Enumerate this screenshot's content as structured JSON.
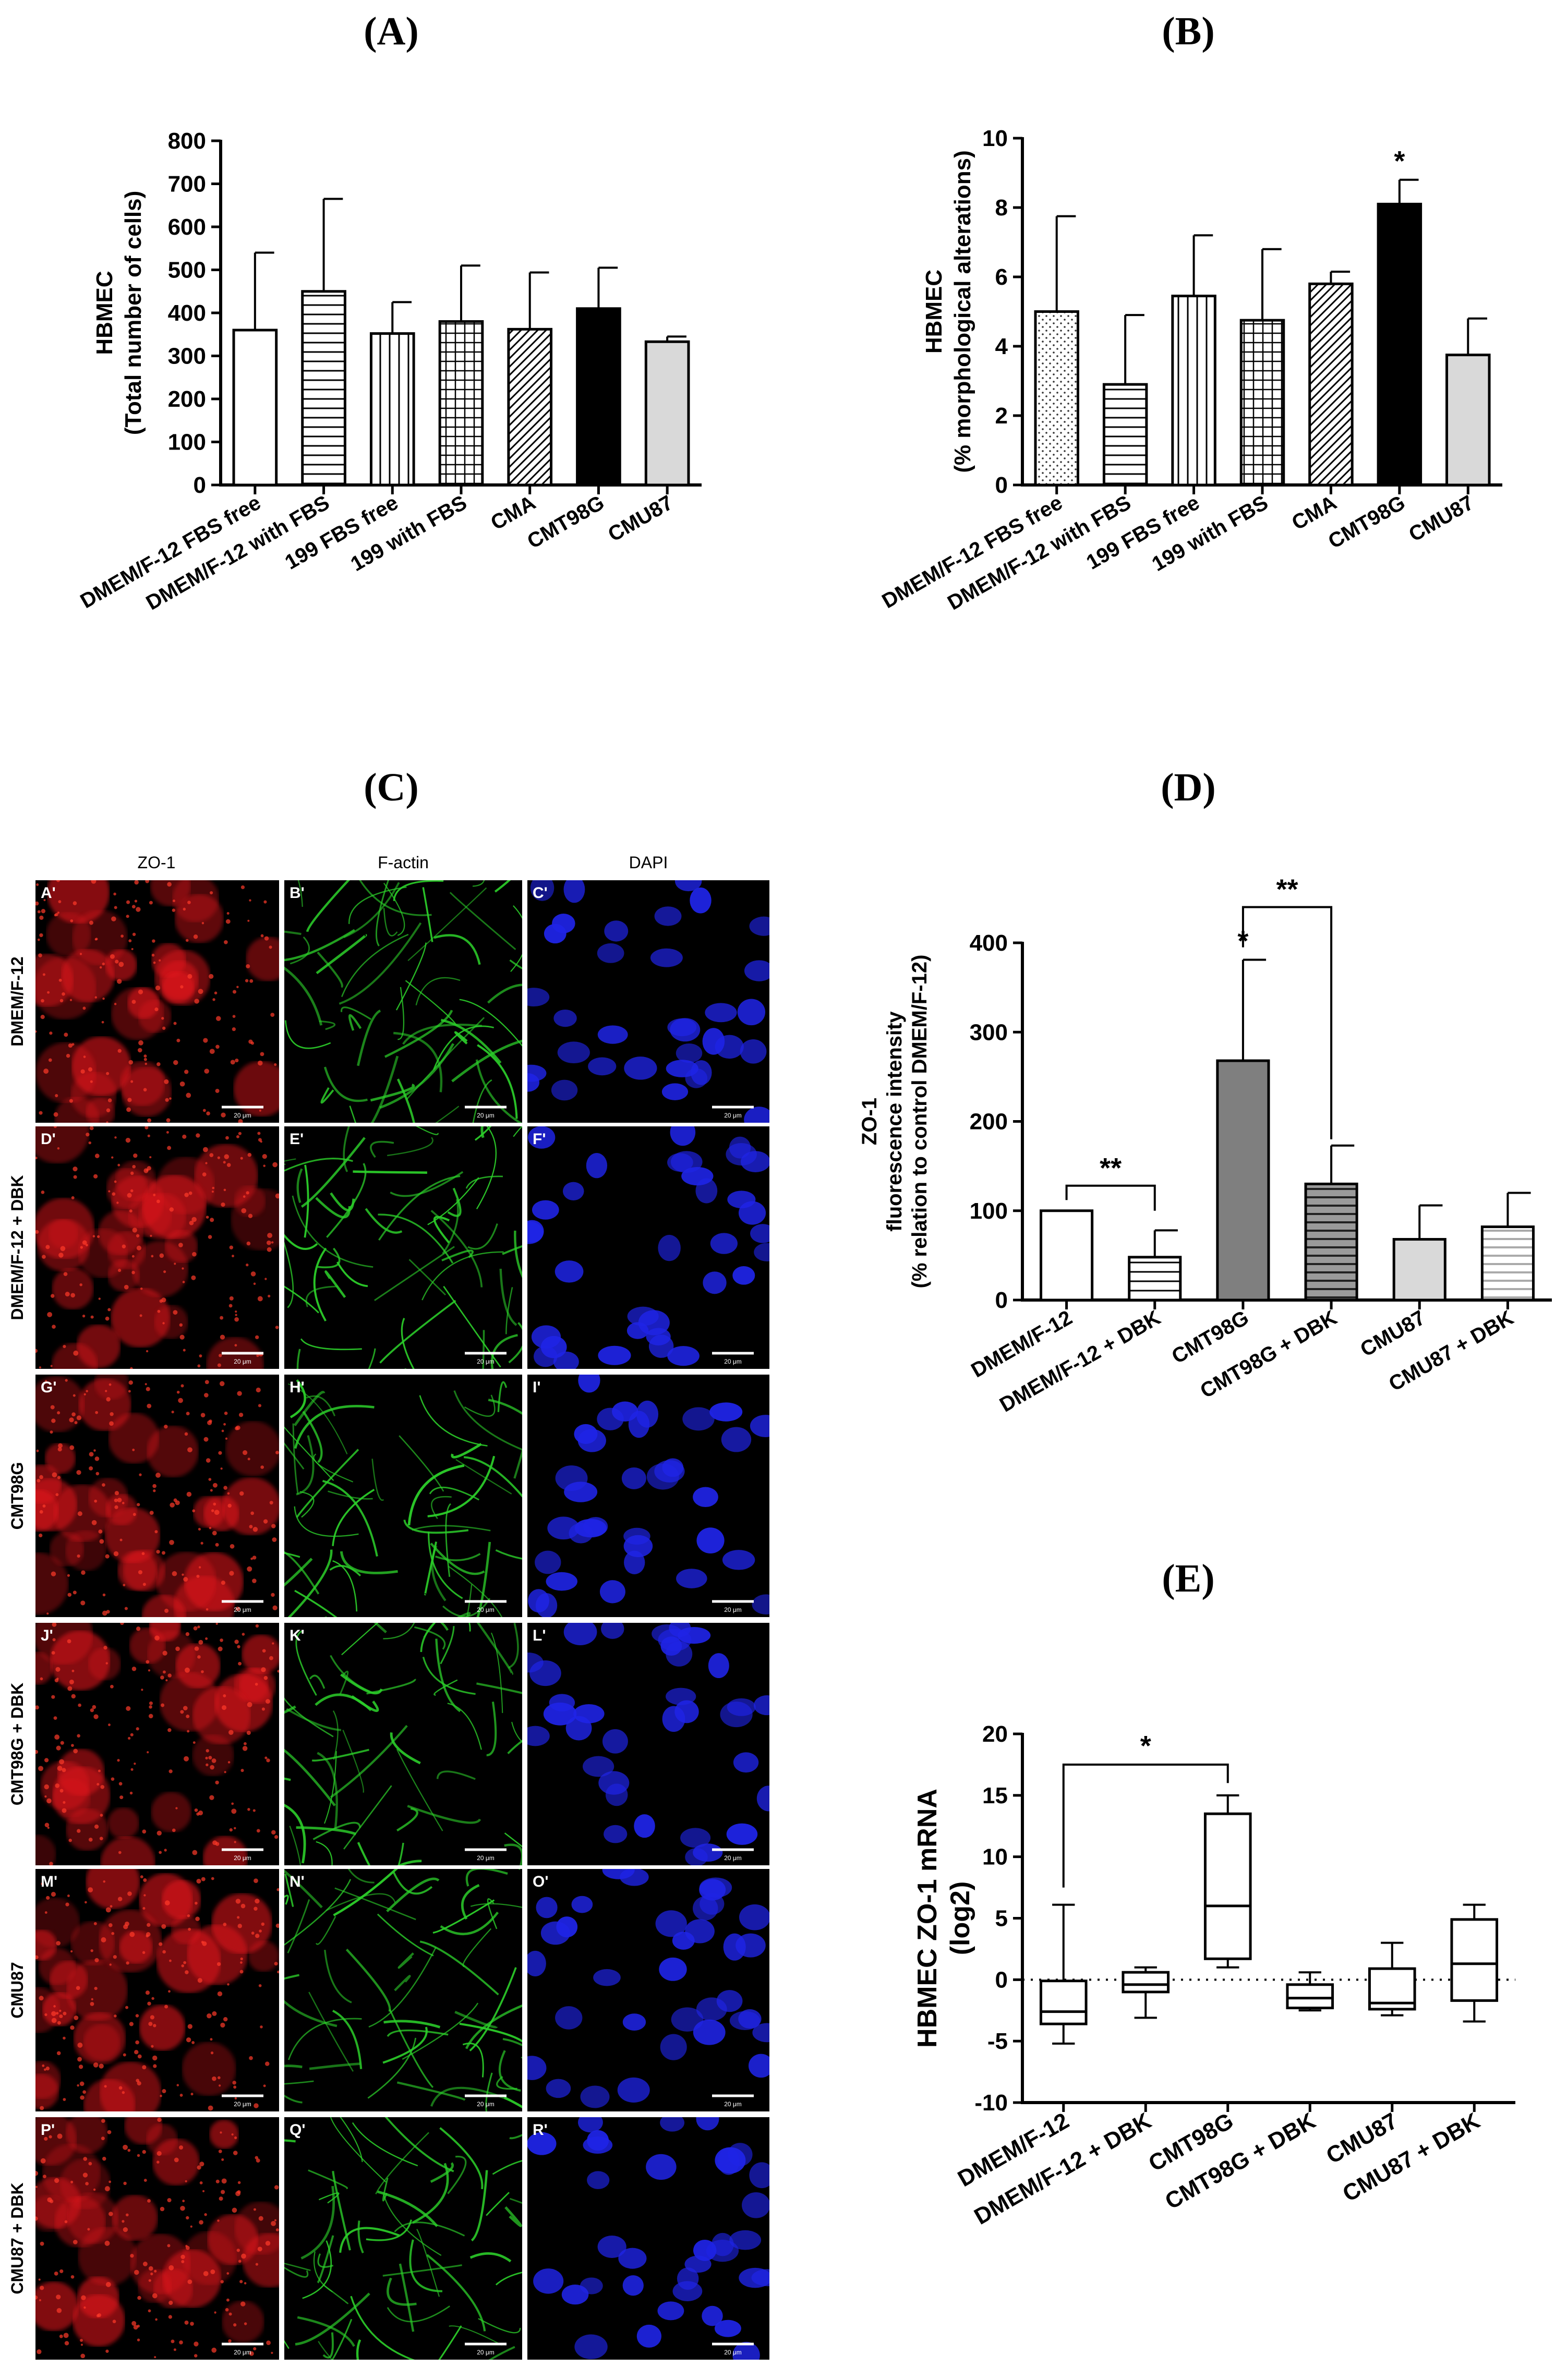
{
  "panels": {
    "A": {
      "label": "(A)"
    },
    "B": {
      "label": "(B)"
    },
    "C": {
      "label": "(C)"
    },
    "D": {
      "label": "(D)"
    },
    "E": {
      "label": "(E)"
    }
  },
  "microscopy": {
    "columns": [
      "ZO-1",
      "F-actin",
      "DAPI"
    ],
    "rows": [
      {
        "label": "DMEM/F-12",
        "tiles": [
          "A'",
          "B'",
          "C'"
        ]
      },
      {
        "label": "DMEM/F-12 + DBK",
        "tiles": [
          "D'",
          "E'",
          "F'"
        ]
      },
      {
        "label": "CMT98G",
        "tiles": [
          "G'",
          "H'",
          "I'"
        ]
      },
      {
        "label": "CMT98G + DBK",
        "tiles": [
          "J'",
          "K'",
          "L'"
        ]
      },
      {
        "label": "CMU87",
        "tiles": [
          "M'",
          "N'",
          "O'"
        ]
      },
      {
        "label": "CMU87 + DBK",
        "tiles": [
          "P'",
          "Q'",
          "R'"
        ]
      }
    ],
    "scale_bar": "20 μm",
    "channel_colors": [
      "#e4161b",
      "#2ccf2a",
      "#1f24e6"
    ]
  },
  "chart_data": [
    {
      "id": "A",
      "type": "bar",
      "categories": [
        "DMEM/F-12 FBS free",
        "DMEM/F-12 with FBS",
        "199 FBS free",
        "199 with FBS",
        "CMA",
        "CMT98G",
        "CMU87"
      ],
      "values": [
        360,
        450,
        352,
        380,
        362,
        410,
        333
      ],
      "errors": [
        180,
        215,
        73,
        130,
        132,
        95,
        12
      ],
      "patterns": [
        "none",
        "hlines",
        "vlines",
        "grid",
        "diag",
        "solid-black",
        "solid-gray"
      ],
      "ylabel": "HBMEC",
      "ylabel2": "(Total number of cells)",
      "ylim": [
        0,
        800
      ],
      "yticks": [
        0,
        100,
        200,
        300,
        400,
        500,
        600,
        700,
        800
      ],
      "significance": [
        "",
        "",
        "",
        "",
        "",
        "",
        ""
      ]
    },
    {
      "id": "B",
      "type": "bar",
      "categories": [
        "DMEM/F-12 FBS free",
        "DMEM/F-12 with FBS",
        "199 FBS free",
        "199 with FBS",
        "CMA",
        "CMT98G",
        "CMU87"
      ],
      "values": [
        5.0,
        2.9,
        5.45,
        4.75,
        5.8,
        8.1,
        3.75
      ],
      "errors": [
        2.75,
        2.0,
        1.75,
        2.05,
        0.35,
        0.7,
        1.05
      ],
      "patterns": [
        "dots",
        "hlines",
        "vlines",
        "grid",
        "diag",
        "solid-black",
        "solid-gray"
      ],
      "ylabel": "HBMEC",
      "ylabel2": "(% morphological alterations)",
      "ylim": [
        0,
        10
      ],
      "yticks": [
        0,
        2,
        4,
        6,
        8,
        10
      ],
      "significance": [
        "",
        "",
        "",
        "",
        "",
        "*",
        ""
      ]
    },
    {
      "id": "D",
      "type": "bar",
      "categories": [
        "DMEM/F-12",
        "DMEM/F-12 + DBK",
        "CMT98G",
        "CMT98G + DBK",
        "CMU87",
        "CMU87 + DBK"
      ],
      "values": [
        100,
        48,
        268,
        130,
        68,
        82
      ],
      "errors": [
        0,
        30,
        113,
        43,
        38,
        38
      ],
      "patterns": [
        "none",
        "hlines",
        "solid-darkgray",
        "hlines-dark",
        "solid-lightgray",
        "hlines-light"
      ],
      "ylabel": "ZO-1",
      "ylabel2": "fluorescence intensity",
      "ylabel3": "(% relation to control DMEM/F-12)",
      "ylim": [
        0,
        400
      ],
      "yticks": [
        0,
        100,
        200,
        300,
        400
      ],
      "significance": [
        "",
        "",
        "*",
        "",
        "",
        ""
      ],
      "brackets": [
        {
          "from": 0,
          "to": 1,
          "label": "**"
        },
        {
          "from": 2,
          "to": 3,
          "label": "**"
        }
      ]
    },
    {
      "id": "E",
      "type": "box",
      "categories": [
        "DMEM/F-12",
        "DMEM/F-12 + DBK",
        "CMT98G",
        "CMT98G + DBK",
        "CMU87",
        "CMU87 + DBK"
      ],
      "boxes": [
        {
          "min": -5.2,
          "q1": -3.6,
          "median": -2.6,
          "q3": -0.1,
          "max": 6.1
        },
        {
          "min": -3.1,
          "q1": -1.0,
          "median": -0.4,
          "q3": 0.6,
          "max": 1.0
        },
        {
          "min": 1.0,
          "q1": 1.7,
          "median": 6.0,
          "q3": 13.5,
          "max": 15.0
        },
        {
          "min": -2.5,
          "q1": -2.3,
          "median": -1.5,
          "q3": -0.4,
          "max": 0.6
        },
        {
          "min": -2.9,
          "q1": -2.4,
          "median": -1.9,
          "q3": 0.9,
          "max": 3.0
        },
        {
          "min": -3.4,
          "q1": -1.7,
          "median": 1.3,
          "q3": 4.9,
          "max": 6.1
        }
      ],
      "ylabel": "HBMEC ZO-1 mRNA",
      "ylabel2": "(log2)",
      "ylim": [
        -10,
        20
      ],
      "yticks": [
        -10,
        -5,
        0,
        5,
        10,
        15,
        20
      ],
      "reference_line": 0,
      "brackets": [
        {
          "from": 0,
          "to": 2,
          "label": "*"
        }
      ]
    }
  ]
}
